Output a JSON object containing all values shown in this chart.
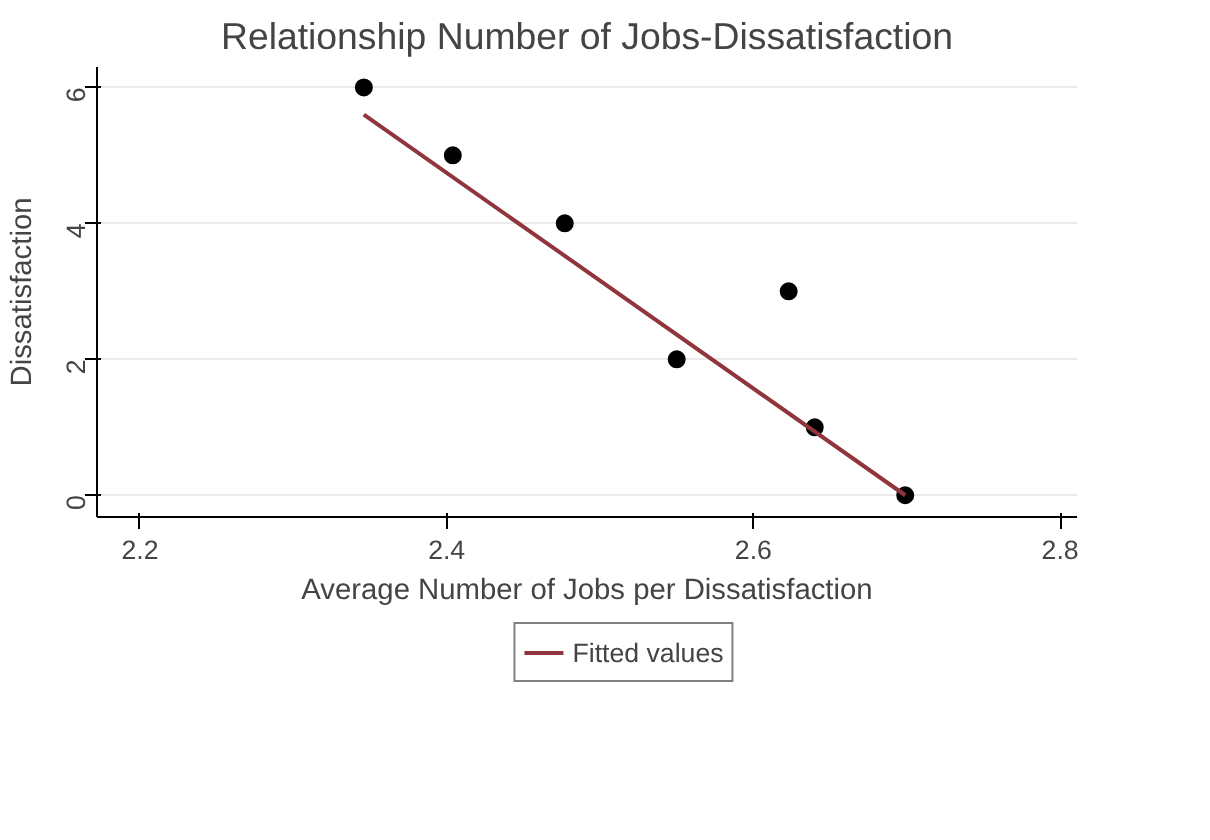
{
  "chart_data": {
    "type": "scatter",
    "title": "Relationship Number of Jobs-Dissatisfaction",
    "xlabel": "Average Number of Jobs per Dissatisfaction",
    "ylabel": "Dissatisfaction",
    "series": [
      {
        "marker": "circle",
        "color": "#000000",
        "x": [
          2.346,
          2.404,
          2.477,
          2.55,
          2.623,
          2.64,
          2.699
        ],
        "values": [
          6,
          5,
          4,
          2,
          3,
          1,
          0
        ]
      },
      {
        "type": "line",
        "name": "Fitted values",
        "color": "#90353b",
        "x": [
          2.346,
          2.699
        ],
        "values": [
          5.6,
          0
        ]
      }
    ],
    "xlim": [
      2.172,
      2.811
    ],
    "ylim": [
      -0.32,
      6.3
    ],
    "xticks": [
      2.2,
      2.4,
      2.6,
      2.8
    ],
    "yticks": [
      0,
      2,
      4,
      6
    ],
    "grid": "y",
    "legend": "bottom"
  }
}
